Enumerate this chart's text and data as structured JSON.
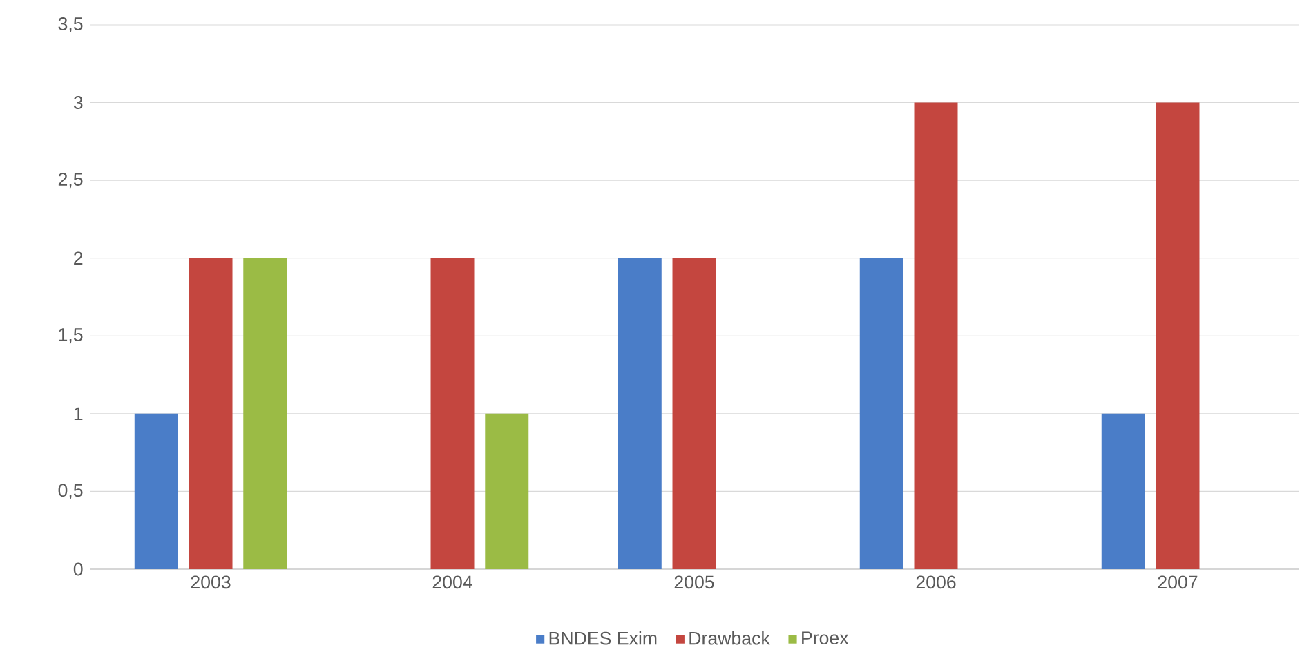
{
  "chart_data": {
    "type": "bar",
    "categories": [
      "2003",
      "2004",
      "2005",
      "2006",
      "2007"
    ],
    "series": [
      {
        "name": "BNDES Exim",
        "color": "#4a7dc8",
        "values": [
          1,
          null,
          2,
          2,
          1
        ]
      },
      {
        "name": "Drawback",
        "color": "#c4463f",
        "values": [
          2,
          2,
          2,
          3,
          3
        ]
      },
      {
        "name": "Proex",
        "color": "#9bbb45",
        "values": [
          2,
          1,
          null,
          null,
          null
        ]
      }
    ],
    "ylim": [
      0,
      3.5
    ],
    "yticks": [
      0,
      {
        "value": 0.5,
        "label": "0,5"
      },
      1,
      {
        "value": 1.5,
        "label": "1,5"
      },
      2,
      {
        "value": 2.5,
        "label": "2,5"
      },
      3,
      {
        "value": 3.5,
        "label": "3,5"
      }
    ],
    "grid": "y",
    "legend": "bottom"
  }
}
